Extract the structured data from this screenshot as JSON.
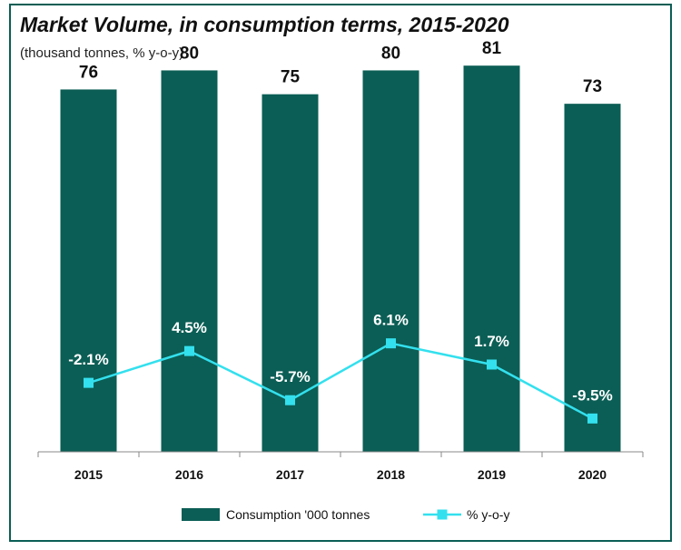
{
  "chart_data": {
    "type": "bar",
    "title": "Market Volume, in consumption terms, 2015-2020",
    "subtitle": "(thousand tonnes, % y-o-y)",
    "categories": [
      "2015",
      "2016",
      "2017",
      "2018",
      "2019",
      "2020"
    ],
    "series": [
      {
        "name": "Consumption '000 tonnes",
        "type": "bar",
        "values": [
          76,
          80,
          75,
          80,
          81,
          73
        ],
        "labels": [
          "76",
          "80",
          "75",
          "80",
          "81",
          "73"
        ],
        "color": "#0b5e55"
      },
      {
        "name": "% y-o-y",
        "type": "line",
        "values": [
          -2.1,
          4.5,
          -5.7,
          6.1,
          1.7,
          -9.5
        ],
        "labels": [
          "-2.1%",
          "4.5%",
          "-5.7%",
          "6.1%",
          "1.7%",
          "-9.5%"
        ],
        "color": "#33e0ee"
      }
    ],
    "ylim": [
      0,
      90
    ],
    "y2lim": [
      -50,
      50
    ],
    "grid": false,
    "legend": "bottom"
  }
}
